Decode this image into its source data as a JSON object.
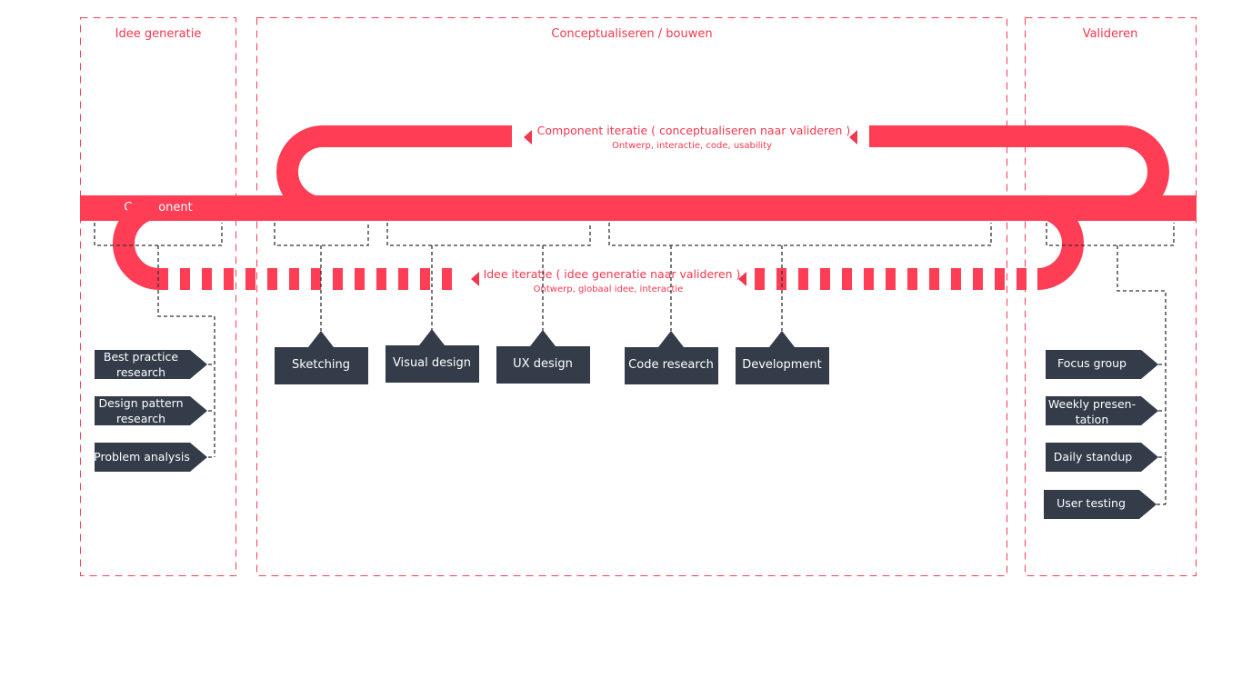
{
  "colors": {
    "accent": "#ff3d55",
    "accent_text": "#f0384f",
    "box": "#343c4a",
    "box_text": "#ffffff",
    "dashed_connector": "#333333"
  },
  "phases": {
    "idee": "Idee generatie",
    "concept": "Conceptualiseren / bouwen",
    "valideren": "Valideren"
  },
  "main_track_label": "Component",
  "component_loop": {
    "title": "Component iteratie ( conceptualiseren naar valideren )",
    "subtitle": "Ontwerp, interactie, code, usability"
  },
  "idee_loop": {
    "title": "Idee iteratie ( idee generatie naar valideren )",
    "subtitle": "Ontwerp, globaal idee, interactie"
  },
  "left_tasks": [
    {
      "line1": "Best practice",
      "line2": "research"
    },
    {
      "line1": "Design pattern",
      "line2": "research"
    },
    {
      "line1": "Problem analysis",
      "line2": ""
    }
  ],
  "middle_tasks": [
    "Sketching",
    "Visual design",
    "UX design",
    "Code research",
    "Development"
  ],
  "right_tasks": [
    {
      "line1": "Focus group",
      "line2": ""
    },
    {
      "line1": "Weekly presen-",
      "line2": "tation"
    },
    {
      "line1": "Daily standup",
      "line2": ""
    },
    {
      "line1": "User testing",
      "line2": ""
    }
  ]
}
